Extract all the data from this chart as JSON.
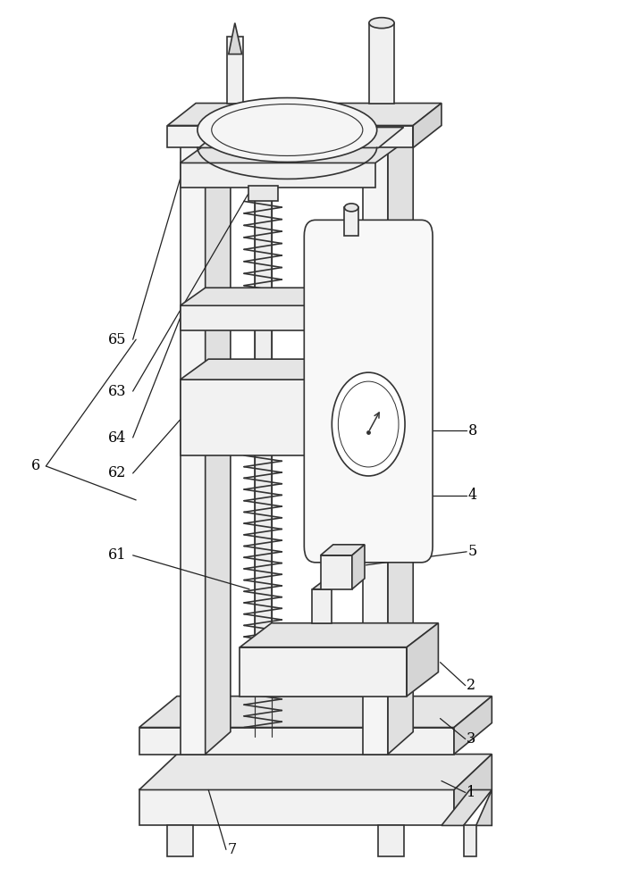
{
  "bg_color": "#ffffff",
  "line_color": "#333333",
  "line_width": 1.2,
  "fig_width": 7.06,
  "fig_height": 10.0
}
